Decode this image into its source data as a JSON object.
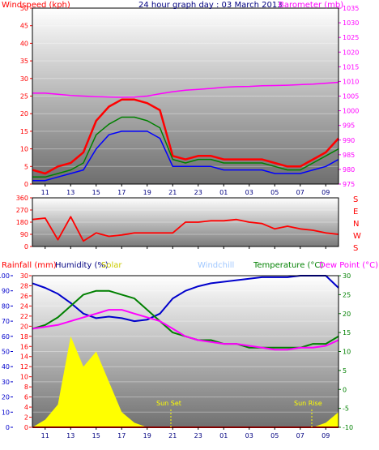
{
  "header": {
    "title": "24 hour graph day : 03 March 2013",
    "windspeed_label": "Windspeed (kph)",
    "barometer_label": "Barometer (mb)"
  },
  "panel2": {
    "direction_letters": [
      "S",
      "E",
      "N",
      "W",
      "S"
    ]
  },
  "panel3": {
    "rainfall_label": "Rainfall (mm)",
    "humidity_label": "Humidity (%)",
    "solar_label": "Solar",
    "windchill_label": "Windchill",
    "temperature_label": "Temperature (°C)",
    "dewpoint_label": "Dew Point (°C)",
    "annotations": {
      "sunset": "Sun Set",
      "sunrise": "Sun Rise"
    }
  },
  "colors": {
    "windspeed": "#ff0000",
    "gust": "#0000ff",
    "avg": "#008000",
    "barometer": "#ff00ff",
    "direction": "#ff0000",
    "humidity": "#0000cc",
    "temperature": "#008000",
    "dewpoint": "#ff00ff",
    "windchill": "#c0c0c0",
    "solar": "#ffff00",
    "rainfall": "#ff0000"
  },
  "chart_data": [
    {
      "type": "line",
      "x_tick_labels": [
        "11",
        "13",
        "15",
        "17",
        "19",
        "21",
        "23",
        "01",
        "03",
        "05",
        "07",
        "09"
      ],
      "ylim_left": [
        0,
        50
      ],
      "ylim_right": [
        975,
        1035
      ],
      "y_left_ticks": [
        "0",
        "5",
        "10",
        "15",
        "20",
        "25",
        "30",
        "35",
        "40",
        "45",
        "50"
      ],
      "y_right_ticks": [
        "975",
        "980",
        "985",
        "990",
        "995",
        "1000",
        "1005",
        "1010",
        "1015",
        "1020",
        "1025",
        "1030",
        "1035"
      ],
      "x_hours": [
        0,
        1,
        2,
        3,
        4,
        5,
        6,
        7,
        8,
        9,
        10,
        11,
        12,
        13,
        14,
        15,
        16,
        17,
        18,
        19,
        20,
        21,
        22,
        23,
        24
      ],
      "series": [
        {
          "name": "Windspeed (kph)",
          "axis": "left",
          "values": [
            4,
            3,
            5,
            6,
            9,
            18,
            22,
            24,
            24,
            23,
            21,
            8,
            7,
            8,
            8,
            7,
            7,
            7,
            7,
            6,
            5,
            5,
            7,
            9,
            13
          ]
        },
        {
          "name": "",
          "axis": "left",
          "values": [
            2,
            2,
            3,
            4,
            6,
            14,
            17,
            19,
            19,
            18,
            16,
            7,
            6,
            7,
            7,
            6,
            6,
            6,
            6,
            5,
            4,
            4,
            6,
            8,
            10
          ]
        },
        {
          "name": "",
          "axis": "left",
          "values": [
            1,
            1,
            2,
            3,
            4,
            10,
            14,
            15,
            15,
            15,
            13,
            5,
            5,
            5,
            5,
            4,
            4,
            4,
            4,
            3,
            3,
            3,
            4,
            5,
            7
          ]
        },
        {
          "name": "Barometer (mb)",
          "axis": "right",
          "values": [
            1006,
            1006,
            1005.6,
            1005.2,
            1005,
            1004.8,
            1004.7,
            1004.6,
            1004.7,
            1005,
            1005.8,
            1006.5,
            1007,
            1007.3,
            1007.6,
            1008,
            1008.2,
            1008.3,
            1008.5,
            1008.6,
            1008.7,
            1008.9,
            1009.1,
            1009.4,
            1009.7
          ]
        }
      ]
    },
    {
      "type": "line",
      "x_tick_labels": [
        "11",
        "13",
        "15",
        "17",
        "19",
        "21",
        "23",
        "01",
        "03",
        "05",
        "07",
        "09"
      ],
      "ylim": [
        0,
        360
      ],
      "y_ticks": [
        "0",
        "90",
        "180",
        "270",
        "360"
      ],
      "x_hours": [
        0,
        1,
        2,
        3,
        4,
        5,
        6,
        7,
        8,
        9,
        10,
        11,
        12,
        13,
        14,
        15,
        16,
        17,
        18,
        19,
        20,
        21,
        22,
        23,
        24
      ],
      "series": [
        {
          "name": "",
          "values": [
            200,
            210,
            50,
            220,
            40,
            100,
            75,
            85,
            100,
            100,
            100,
            100,
            180,
            180,
            190,
            190,
            200,
            180,
            170,
            130,
            150,
            130,
            120,
            100,
            90
          ]
        }
      ]
    },
    {
      "type": "line",
      "x_tick_labels": [
        "11",
        "13",
        "15",
        "17",
        "19",
        "21",
        "23",
        "01",
        "03",
        "05",
        "07",
        "09"
      ],
      "ylim_humidity": [
        0,
        100
      ],
      "y_humidity_ticks": [
        "0",
        "10",
        "20",
        "30",
        "40",
        "50",
        "60",
        "70",
        "80",
        "90",
        "100"
      ],
      "ylim_rainfall": [
        0,
        30
      ],
      "y_rainfall_ticks": [
        "0",
        "2",
        "4",
        "6",
        "8",
        "10",
        "12",
        "14",
        "16",
        "18",
        "20",
        "22",
        "24",
        "26",
        "28",
        "30"
      ],
      "ylim_temperature": [
        -10,
        30
      ],
      "y_temperature_ticks": [
        "-10",
        "-5",
        "0",
        "5",
        "10",
        "15",
        "20",
        "25",
        "30"
      ],
      "x_hours": [
        0,
        1,
        2,
        3,
        4,
        5,
        6,
        7,
        8,
        9,
        10,
        11,
        12,
        13,
        14,
        15,
        16,
        17,
        18,
        19,
        20,
        21,
        22,
        23,
        24
      ],
      "series": [
        {
          "name": "Humidity (%)",
          "axis": "humidity",
          "values": [
            95,
            92,
            88,
            82,
            75,
            72,
            73,
            72,
            70,
            71,
            75,
            85,
            90,
            93,
            95,
            96,
            97,
            98,
            99,
            99,
            99,
            100,
            100,
            100,
            92
          ]
        },
        {
          "name": "Temperature (°C)",
          "axis": "temperature",
          "values": [
            16,
            17,
            19,
            22,
            25,
            26,
            26,
            25,
            24,
            21,
            18,
            15,
            14,
            13,
            13,
            12,
            12,
            11,
            11,
            11,
            11,
            11,
            12,
            12,
            14
          ]
        },
        {
          "name": "Dew Point (°C)",
          "axis": "temperature",
          "values": [
            16,
            16.5,
            17,
            18,
            19,
            20,
            21,
            21,
            20,
            19,
            18,
            16,
            14,
            13,
            12.5,
            12,
            12,
            11.5,
            11,
            10.5,
            10.5,
            11,
            11,
            11.5,
            13
          ]
        },
        {
          "name": "Solar",
          "axis": "humidity",
          "values": [
            0,
            5,
            15,
            60,
            40,
            50,
            30,
            10,
            3,
            0,
            0,
            0,
            0,
            0,
            0,
            0,
            0,
            0,
            0,
            0,
            0,
            0,
            0,
            3,
            10
          ]
        },
        {
          "name": "Rainfall (mm)",
          "axis": "rainfall",
          "values": [
            0,
            0,
            0,
            0,
            0,
            0,
            0,
            0,
            0,
            0,
            0,
            0,
            0,
            0,
            0,
            0,
            0,
            0,
            0,
            0,
            0,
            0,
            0,
            0,
            0
          ]
        }
      ]
    }
  ]
}
